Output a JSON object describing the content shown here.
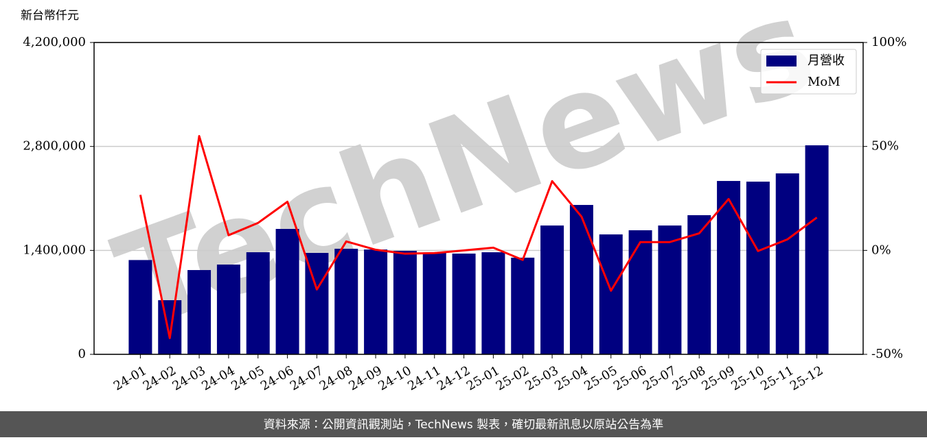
{
  "chart_data": {
    "type": "bar",
    "y_label": "新台幣仟元",
    "watermark": "TechNews",
    "footer": "資料來源：公開資訊觀測站，TechNews 製表，確切最新訊息以原站公告為準",
    "categories": [
      "24-01",
      "24-02",
      "24-03",
      "24-04",
      "24-05",
      "24-06",
      "24-07",
      "24-08",
      "24-09",
      "24-10",
      "24-11",
      "24-12",
      "25-01",
      "25-02",
      "25-03",
      "25-04",
      "25-05",
      "25-06",
      "25-07",
      "25-08",
      "25-09",
      "25-10",
      "25-11",
      "25-12"
    ],
    "series": [
      {
        "name": "月營收",
        "type": "bar",
        "color": "#000080",
        "values": [
          1270000,
          729000,
          1135000,
          1209000,
          1375000,
          1689000,
          1366000,
          1422000,
          1412000,
          1394000,
          1366000,
          1357000,
          1375000,
          1302000,
          1735000,
          2012000,
          1615000,
          1671000,
          1735000,
          1874000,
          2335000,
          2326000,
          2437000,
          2815000
        ]
      },
      {
        "name": "MoM",
        "type": "line",
        "color": "#ff0000",
        "axis": "y2",
        "values": [
          26.7,
          -42.2,
          55.0,
          7.3,
          13.2,
          23.4,
          -18.8,
          4.3,
          0.3,
          -1.6,
          -1.3,
          0.0,
          1.3,
          -4.6,
          33.3,
          16.2,
          -19.4,
          4.0,
          4.0,
          8.2,
          24.7,
          -0.3,
          5.3,
          15.8
        ]
      }
    ],
    "ylim": [
      0,
      4200000
    ],
    "yticks": [
      0,
      {
        "value": 1400000,
        "label": "1,400,000"
      },
      {
        "value": 2800000,
        "label": "2,800,000"
      },
      {
        "value": 4200000,
        "label": "4,200,000"
      }
    ],
    "y2lim": [
      -50,
      100
    ],
    "y2ticks": [
      {
        "value": -50,
        "label": "-50%"
      },
      {
        "value": 0,
        "label": "0%"
      },
      {
        "value": 50,
        "label": "50%"
      },
      {
        "value": 100,
        "label": "100%"
      }
    ],
    "grid": true,
    "legend": "upper right"
  }
}
